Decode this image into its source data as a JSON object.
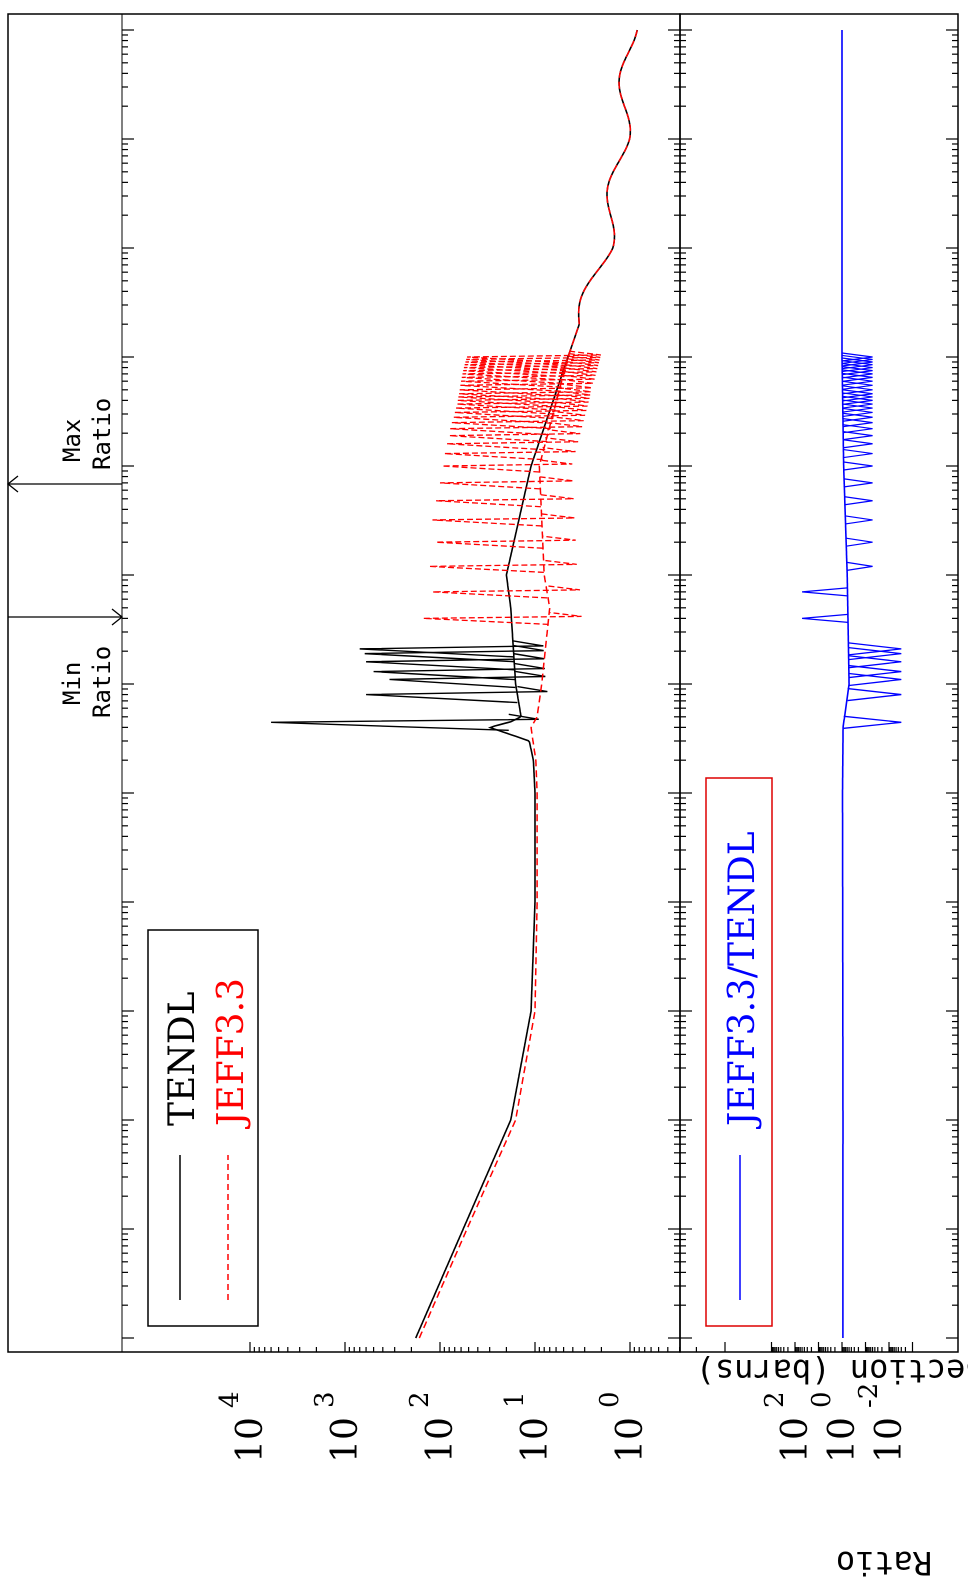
{
  "figure": {
    "top_ylabel": "Cross Section (barns)",
    "bottom_ylabel": "Ratio",
    "min_marker_label": [
      "Min",
      "Ratio"
    ],
    "max_marker_label": [
      "Max",
      "Ratio"
    ]
  },
  "chart_data": [
    {
      "type": "line",
      "panel": "cross-section",
      "ylabel": "Cross Section (barns)",
      "yscale": "log",
      "ylim": [
        0.5,
        20000
      ],
      "y_ticks": [
        {
          "value": 10000,
          "base": "10",
          "exp": "4"
        },
        {
          "value": 1000,
          "base": "10",
          "exp": "3"
        },
        {
          "value": 100,
          "base": "10",
          "exp": "2"
        },
        {
          "value": 10,
          "base": "10",
          "exp": "1"
        },
        {
          "value": 1,
          "base": "10",
          "exp": "0"
        }
      ],
      "xscale": "log",
      "legend": {
        "placement": "top-left",
        "entries": [
          "TENDL",
          "JEFF3.3"
        ]
      },
      "series": [
        {
          "name": "TENDL",
          "color": "#000000",
          "style": "solid",
          "points": [
            [
              1e-05,
              180
            ],
            [
              0.0001,
              57
            ],
            [
              0.001,
              18
            ],
            [
              0.01,
              11
            ],
            [
              0.1,
              10
            ],
            [
              1,
              10
            ],
            [
              2,
              10.4
            ],
            [
              3,
              11.5
            ],
            [
              4,
              30
            ],
            [
              4.5,
              18
            ],
            [
              5,
              14
            ],
            [
              10,
              16
            ],
            [
              50,
              18
            ],
            [
              100,
              20
            ],
            [
              1000,
              11
            ],
            [
              10000,
              4.5
            ],
            [
              100000,
              1.8
            ],
            [
              1000000,
              1.2
            ],
            [
              10000000,
              1.0
            ]
          ],
          "resonance_peaks": [
            [
              4.45,
              6000
            ],
            [
              8,
              600
            ],
            [
              11,
              340
            ],
            [
              13,
              500
            ],
            [
              16,
              600
            ],
            [
              19,
              620
            ],
            [
              21,
              700
            ]
          ]
        },
        {
          "name": "JEFF3.3",
          "color": "#ff0000",
          "style": "dashed",
          "points": [
            [
              1e-05,
              165
            ],
            [
              0.0001,
              52
            ],
            [
              0.001,
              16
            ],
            [
              0.01,
              10
            ],
            [
              0.1,
              9.5
            ],
            [
              1,
              9.5
            ],
            [
              2,
              9.8
            ],
            [
              3,
              10.5
            ],
            [
              4,
              11
            ],
            [
              5,
              9.5
            ],
            [
              10,
              8.5
            ],
            [
              50,
              7
            ],
            [
              100,
              8
            ],
            [
              1000,
              9
            ],
            [
              10000,
              4.5
            ],
            [
              100000,
              1.8
            ],
            [
              1000000,
              1.2
            ],
            [
              10000000,
              1.0
            ]
          ],
          "resonance_peaks": [
            [
              40,
              150
            ],
            [
              70,
              120
            ],
            [
              120,
              130
            ],
            [
              200,
              110
            ],
            [
              320,
              120
            ],
            [
              480,
              110
            ],
            [
              700,
              100
            ],
            [
              1000,
              95
            ],
            [
              1300,
              90
            ],
            [
              1600,
              85
            ],
            [
              1900,
              80
            ],
            [
              2200,
              78
            ],
            [
              2500,
              75
            ],
            [
              2800,
              72
            ],
            [
              3100,
              70
            ],
            [
              3400,
              68
            ],
            [
              3700,
              66
            ],
            [
              4000,
              65
            ],
            [
              4300,
              64
            ],
            [
              4600,
              63
            ],
            [
              5000,
              62
            ],
            [
              5500,
              61
            ],
            [
              6000,
              60
            ],
            [
              6500,
              59
            ],
            [
              7000,
              58
            ],
            [
              7500,
              57
            ],
            [
              8000,
              56
            ],
            [
              8500,
              55
            ],
            [
              9000,
              54
            ],
            [
              9500,
              53
            ],
            [
              10000,
              52
            ]
          ]
        }
      ]
    },
    {
      "type": "line",
      "panel": "ratio",
      "ylabel": "Ratio",
      "yscale": "log",
      "ylim": [
        0.0001,
        10000
      ],
      "y_ticks": [
        {
          "value": 100,
          "base": "10",
          "exp": "2"
        },
        {
          "value": 1,
          "base": "10",
          "exp": "0"
        },
        {
          "value": 0.01,
          "base": "10",
          "exp": "-2"
        }
      ],
      "xscale": "log",
      "legend": {
        "placement": "top-left",
        "entries": [
          "JEFF3.3/TENDL"
        ]
      },
      "series": [
        {
          "name": "JEFF3.3/TENDL",
          "color": "#0000ff",
          "style": "solid",
          "points": [
            [
              1e-05,
              0.92
            ],
            [
              0.001,
              0.91
            ],
            [
              1,
              0.95
            ],
            [
              4,
              0.9
            ],
            [
              10,
              0.5
            ],
            [
              100,
              0.6
            ],
            [
              1000,
              0.85
            ],
            [
              10000,
              1.0
            ],
            [
              100000,
              1.0
            ],
            [
              10000000,
              1.0
            ]
          ]
        }
      ]
    }
  ]
}
